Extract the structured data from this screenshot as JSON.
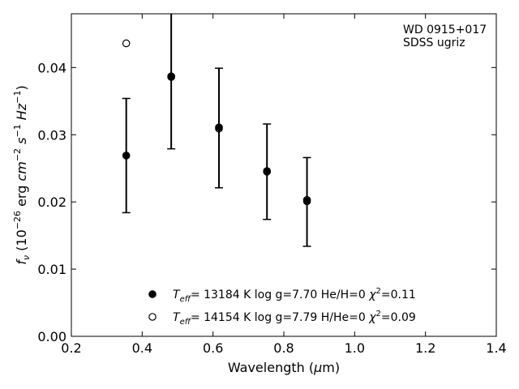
{
  "chart_data": {
    "type": "scatter",
    "xlabel": "Wavelength (μm)",
    "ylabel": "f_ν (10^-26 erg cm^-2 s^-1 Hz^-1)",
    "xlim": [
      0.2,
      1.4
    ],
    "ylim": [
      0.0,
      0.048
    ],
    "x_ticks": [
      0.2,
      0.4,
      0.6,
      0.8,
      1.0,
      1.2,
      1.4
    ],
    "y_ticks": [
      0.0,
      0.01,
      0.02,
      0.03,
      0.04
    ],
    "x_tick_labels": [
      "0.2",
      "0.4",
      "0.6",
      "0.8",
      "1.0",
      "1.2",
      "1.4"
    ],
    "y_tick_labels": [
      "0.00",
      "0.01",
      "0.02",
      "0.03",
      "0.04"
    ],
    "grid": false,
    "annotation": [
      "WD 0915+017",
      "SDSS ugriz"
    ],
    "observed": {
      "x": [
        0.355,
        0.482,
        0.6168,
        0.7524,
        0.8654
      ],
      "y": [
        0.0269,
        0.0386,
        0.031,
        0.0245,
        0.02
      ],
      "yerr": [
        0.0085,
        0.0107,
        0.0089,
        0.0071,
        0.0066
      ]
    },
    "series": [
      {
        "name": "T_eff= 13184 K  log g=7.70  He/H=0  χ²=0.11",
        "marker": "filled",
        "x": [
          0.355,
          0.482,
          0.6168,
          0.7524,
          0.8654
        ],
        "y": [
          0.0269,
          0.0387,
          0.0311,
          0.0246,
          0.0201
        ]
      },
      {
        "name": "T_eff= 14154 K  log g=7.79  H/He=0  χ²=0.09",
        "marker": "open",
        "x": [
          0.355,
          0.482,
          0.6168,
          0.7524,
          0.8654
        ],
        "y": [
          0.0436,
          0.0386,
          0.0309,
          0.0245,
          0.0203
        ]
      }
    ],
    "legend_position": "bottom-center"
  }
}
